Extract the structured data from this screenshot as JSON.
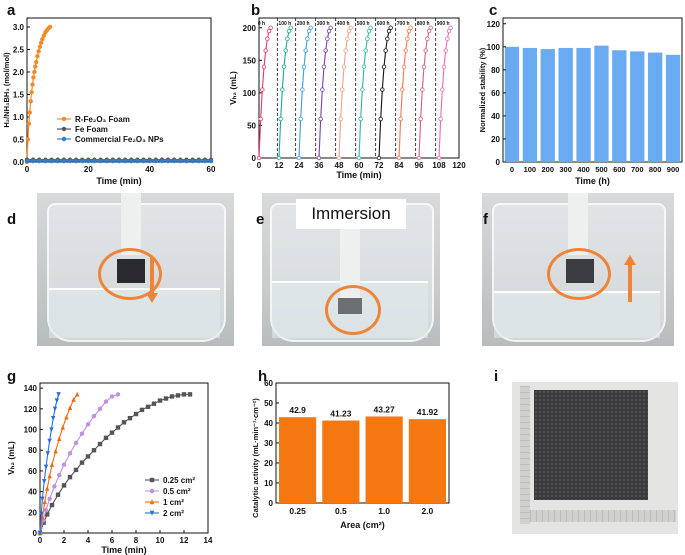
{
  "panels": {
    "a": {
      "letter": "a",
      "xlabel": "Time (min)",
      "ylabel": "H₂/NH₃BH₃ (mol/mol)",
      "xticks": [
        "0",
        "20",
        "40",
        "60"
      ],
      "yticks": [
        "0.0",
        "0.5",
        "1.0",
        "1.5",
        "2.0",
        "2.5",
        "3.0"
      ],
      "legend": [
        "R-Fe₂O₃ Foam",
        "Fe Foam",
        "Commercial Fe₂O₃ NPs"
      ]
    },
    "b": {
      "letter": "b",
      "xlabel": "Time (min)",
      "ylabel": "Vₕ₂ (mL)",
      "xticks": [
        "0",
        "12",
        "24",
        "36",
        "48",
        "60",
        "72",
        "84",
        "96",
        "108",
        "120"
      ],
      "yticks": [
        "0",
        "50",
        "100",
        "150",
        "200"
      ],
      "cycle_labels": [
        "0 h",
        "100 h",
        "200 h",
        "300 h",
        "400 h",
        "500 h",
        "600 h",
        "700 h",
        "800 h",
        "900 h"
      ]
    },
    "c": {
      "letter": "c",
      "xlabel": "Time (h)",
      "ylabel": "Normalized stability (%)",
      "xticks": [
        "0",
        "100",
        "200",
        "300",
        "400",
        "500",
        "600",
        "700",
        "800",
        "900"
      ],
      "yticks": [
        "0",
        "20",
        "40",
        "60",
        "80",
        "100",
        "120"
      ]
    },
    "d": {
      "letter": "d"
    },
    "e": {
      "letter": "e",
      "caption": "Immersion"
    },
    "f": {
      "letter": "f"
    },
    "g": {
      "letter": "g",
      "xlabel": "Time (min)",
      "ylabel": "Vₕ₂ (mL)",
      "xticks": [
        "0",
        "2",
        "4",
        "6",
        "8",
        "10",
        "12",
        "14"
      ],
      "yticks": [
        "0",
        "20",
        "40",
        "60",
        "80",
        "100",
        "120",
        "140"
      ],
      "legend": [
        "0.25 cm²",
        "0.5 cm²",
        "1 cm²",
        "2 cm²"
      ]
    },
    "h": {
      "letter": "h",
      "xlabel": "Area (cm²)",
      "ylabel": "Catalytic activity (mL·min⁻¹·cm⁻²)",
      "xticks": [
        "0.25",
        "0.5",
        "1.0",
        "2.0"
      ],
      "yticks": [
        "0",
        "10",
        "20",
        "30",
        "40",
        "50",
        "60"
      ]
    },
    "i": {
      "letter": "i"
    }
  },
  "chart_data": [
    {
      "id": "a",
      "type": "line",
      "title": "",
      "xlabel": "Time (min)",
      "ylabel": "H2/NH3BH3 (mol/mol)",
      "xlim": [
        0,
        60
      ],
      "ylim": [
        0,
        3.2
      ],
      "series": [
        {
          "name": "R-Fe2O3 Foam",
          "color": "#f28c28",
          "x": [
            0,
            0.3,
            0.6,
            0.9,
            1.2,
            1.5,
            1.8,
            2.1,
            2.4,
            2.7,
            3.0,
            3.4,
            3.8,
            4.2,
            4.6,
            5.0,
            5.5,
            6.0,
            6.5,
            7.0,
            7.5
          ],
          "y": [
            0,
            0.5,
            0.85,
            1.1,
            1.35,
            1.55,
            1.72,
            1.88,
            2.0,
            2.12,
            2.22,
            2.35,
            2.46,
            2.56,
            2.65,
            2.73,
            2.81,
            2.88,
            2.93,
            2.97,
            3.0
          ]
        },
        {
          "name": "Fe Foam",
          "color": "#555555",
          "x": [
            0,
            2,
            4,
            6,
            8,
            10,
            12,
            14,
            16,
            18,
            20,
            22,
            24,
            26,
            28,
            30,
            32,
            34,
            36,
            38,
            40,
            42,
            44,
            46,
            48,
            50,
            52,
            54,
            56,
            58,
            60
          ],
          "y": [
            0.05,
            0.05,
            0.05,
            0.05,
            0.05,
            0.05,
            0.05,
            0.05,
            0.05,
            0.05,
            0.05,
            0.05,
            0.05,
            0.05,
            0.05,
            0.05,
            0.05,
            0.05,
            0.05,
            0.05,
            0.05,
            0.05,
            0.05,
            0.05,
            0.05,
            0.05,
            0.05,
            0.05,
            0.05,
            0.05,
            0.05
          ]
        },
        {
          "name": "Commercial Fe2O3 NPs",
          "color": "#2e7bd6",
          "x": [
            0,
            2,
            4,
            6,
            8,
            10,
            12,
            14,
            16,
            18,
            20,
            22,
            24,
            26,
            28,
            30,
            32,
            34,
            36,
            38,
            40,
            42,
            44,
            46,
            48,
            50,
            52,
            54,
            56,
            58,
            60
          ],
          "y": [
            0.02,
            0.02,
            0.02,
            0.02,
            0.02,
            0.02,
            0.02,
            0.02,
            0.02,
            0.02,
            0.02,
            0.02,
            0.02,
            0.02,
            0.02,
            0.02,
            0.02,
            0.02,
            0.02,
            0.02,
            0.02,
            0.02,
            0.02,
            0.02,
            0.02,
            0.02,
            0.02,
            0.02,
            0.02,
            0.02,
            0.02
          ]
        }
      ]
    },
    {
      "id": "b",
      "type": "line",
      "title": "",
      "xlabel": "Time (min)",
      "ylabel": "VH2 (mL)",
      "xlim": [
        0,
        120
      ],
      "ylim": [
        0,
        215
      ],
      "cycle_starts": [
        0,
        12,
        24,
        36,
        48,
        60,
        72,
        84,
        96,
        108
      ],
      "cycle_duration": 7,
      "cycle_curve_t": [
        0,
        1,
        2,
        3,
        4,
        5,
        6,
        7
      ],
      "cycle_curve_v": [
        0,
        60,
        105,
        140,
        165,
        183,
        195,
        200
      ],
      "dividers": [
        11,
        22,
        34,
        46,
        58,
        70,
        82,
        94,
        106
      ],
      "colors": [
        "#e8336f",
        "#19a89a",
        "#3aa0d8",
        "#7b3fa0",
        "#f0a08a",
        "#2db8a0",
        "#111111",
        "#f07850",
        "#d06080",
        "#e86ab0"
      ]
    },
    {
      "id": "c",
      "type": "bar",
      "title": "",
      "xlabel": "Time (h)",
      "ylabel": "Normalized stability (%)",
      "categories": [
        "0",
        "100",
        "200",
        "300",
        "400",
        "500",
        "600",
        "700",
        "800",
        "900"
      ],
      "values": [
        100,
        99,
        98,
        99,
        99,
        101,
        97,
        96,
        95,
        93
      ],
      "ylim": [
        0,
        125
      ],
      "color": "#6aaaf0"
    },
    {
      "id": "g",
      "type": "line",
      "title": "",
      "xlabel": "Time (min)",
      "ylabel": "VH2 (mL)",
      "xlim": [
        0,
        14
      ],
      "ylim": [
        0,
        145
      ],
      "series": [
        {
          "name": "0.25 cm²",
          "color": "#555555",
          "marker": "square",
          "x": [
            0,
            0.3,
            0.6,
            1.0,
            1.5,
            2.0,
            2.5,
            3.0,
            3.5,
            4.0,
            4.5,
            5.0,
            5.5,
            6.0,
            6.5,
            7.0,
            7.5,
            8.0,
            8.5,
            9.0,
            9.5,
            10.0,
            10.5,
            11.0,
            11.5,
            12.0,
            12.5
          ],
          "y": [
            0,
            10,
            18,
            27,
            37,
            46,
            54,
            61,
            68,
            74,
            80,
            86,
            92,
            97,
            102,
            107,
            111,
            115,
            119,
            122,
            125,
            128,
            130,
            132,
            133,
            134,
            134
          ]
        },
        {
          "name": "0.5 cm²",
          "color": "#c08fe0",
          "marker": "circle",
          "x": [
            0,
            0.25,
            0.5,
            0.8,
            1.2,
            1.6,
            2.0,
            2.5,
            3.0,
            3.5,
            4.0,
            4.5,
            5.0,
            5.5,
            6.0,
            6.5
          ],
          "y": [
            0,
            12,
            22,
            33,
            45,
            56,
            66,
            77,
            87,
            96,
            105,
            113,
            120,
            127,
            132,
            134
          ]
        },
        {
          "name": "1 cm²",
          "color": "#f06a10",
          "marker": "triangle",
          "x": [
            0,
            0.2,
            0.4,
            0.6,
            0.8,
            1.0,
            1.3,
            1.6,
            1.9,
            2.2,
            2.5,
            2.8,
            3.1
          ],
          "y": [
            0,
            15,
            30,
            43,
            55,
            66,
            79,
            91,
            102,
            112,
            121,
            129,
            134
          ]
        },
        {
          "name": "2 cm²",
          "color": "#2a6fd6",
          "marker": "triangle-down",
          "x": [
            0,
            0.1,
            0.2,
            0.35,
            0.5,
            0.65,
            0.8,
            0.95,
            1.1,
            1.25,
            1.4,
            1.55
          ],
          "y": [
            0,
            18,
            33,
            50,
            64,
            77,
            89,
            100,
            111,
            120,
            128,
            134
          ]
        }
      ]
    },
    {
      "id": "h",
      "type": "bar",
      "title": "",
      "xlabel": "Area (cm²)",
      "ylabel": "Catalytic activity (mL·min⁻¹·cm⁻²)",
      "categories": [
        "0.25",
        "0.5",
        "1.0",
        "2.0"
      ],
      "values": [
        42.9,
        41.23,
        43.27,
        41.92
      ],
      "value_labels": [
        "42.9",
        "41.23",
        "43.27",
        "41.92"
      ],
      "ylim": [
        0,
        60
      ],
      "color": "#f5770f"
    }
  ]
}
